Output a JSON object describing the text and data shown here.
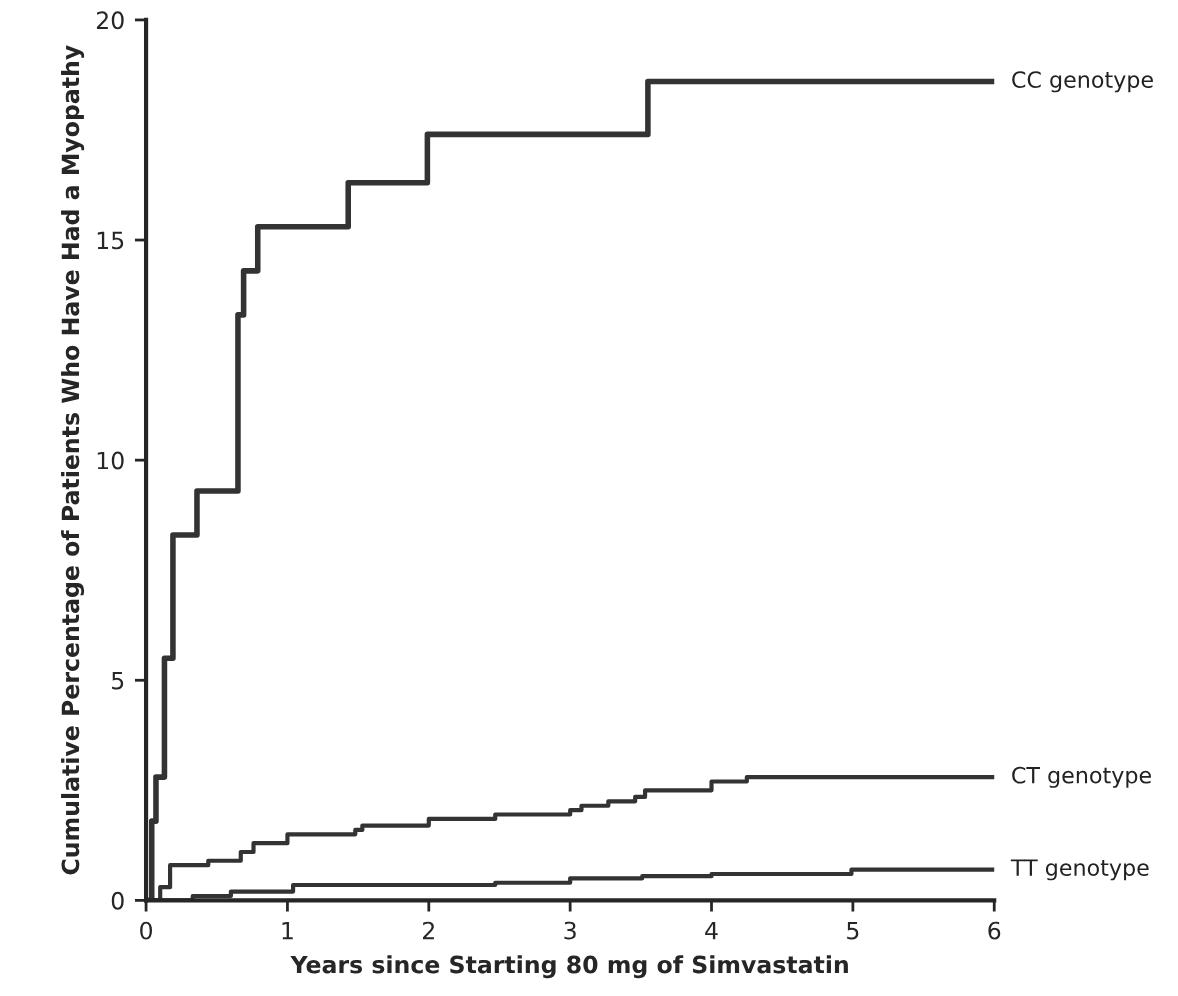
{
  "chart_data": {
    "type": "step",
    "xlabel": "Years since Starting 80 mg of Simvastatin",
    "ylabel": "Cumulative Percentage of Patients Who Have Had a Myopathy",
    "xlim": [
      0,
      6
    ],
    "xticks": [
      0,
      1,
      2,
      3,
      4,
      5,
      6
    ],
    "ylim": [
      0,
      20
    ],
    "yticks": [
      0,
      5,
      10,
      15,
      20
    ],
    "grid": false,
    "legend": false,
    "series": [
      {
        "name": "CC genotype",
        "color": "#333333",
        "x": [
          0,
          0.04,
          0.07,
          0.13,
          0.19,
          0.36,
          0.65,
          0.69,
          0.79,
          1.43,
          1.99,
          3.55,
          6
        ],
        "values": [
          0,
          1.8,
          2.8,
          5.5,
          8.3,
          9.3,
          13.3,
          14.3,
          15.3,
          16.3,
          17.4,
          18.6,
          18.6
        ]
      },
      {
        "name": "CT genotype",
        "color": "#333333",
        "x": [
          0,
          0.1,
          0.17,
          0.44,
          0.67,
          0.76,
          1.0,
          1.48,
          1.53,
          2.0,
          2.47,
          3.0,
          3.08,
          3.27,
          3.46,
          3.53,
          4.0,
          4.25,
          6
        ],
        "values": [
          0,
          0.3,
          0.8,
          0.9,
          1.1,
          1.3,
          1.5,
          1.6,
          1.7,
          1.85,
          1.95,
          2.05,
          2.15,
          2.25,
          2.35,
          2.5,
          2.7,
          2.8,
          2.8
        ]
      },
      {
        "name": "TT genotype",
        "color": "#333333",
        "x": [
          0,
          0.33,
          0.6,
          1.04,
          2.47,
          3.0,
          3.51,
          4.0,
          4.99,
          6
        ],
        "values": [
          0,
          0.1,
          0.2,
          0.35,
          0.4,
          0.5,
          0.55,
          0.6,
          0.7,
          0.7
        ]
      }
    ]
  }
}
